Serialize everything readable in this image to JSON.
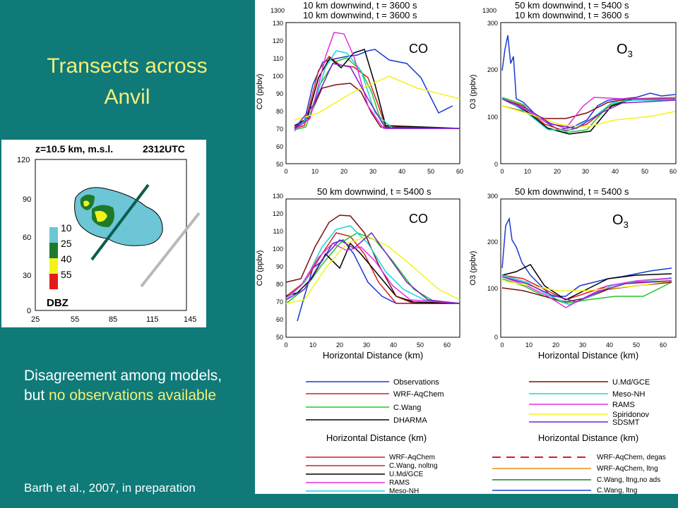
{
  "slide": {
    "title_line1": "Transects across",
    "title_line2": "Anvil",
    "desc_part1": "Disagreement among models, but ",
    "desc_highlight": "no observations available",
    "citation": "Barth et al., 2007, in preparation",
    "colors": {
      "background": "#0f7a78",
      "title": "#f4ee7a",
      "text": "#ffffff"
    }
  },
  "map": {
    "title": "z=10.5 km, m.s.l.",
    "time": "2312UTC",
    "y_ticks": [
      "120",
      "90",
      "60",
      "30",
      "0"
    ],
    "x_ticks": [
      "25",
      "55",
      "85",
      "115",
      "145"
    ],
    "legend": [
      "10",
      "25",
      "40",
      "55"
    ],
    "legend_unit": "DBZ"
  },
  "panels": {
    "p1": {
      "title_a": "10 km downwind, t = 3600 s",
      "title_b": "10 km downwind, t = 3600 s",
      "label": "CO",
      "ylabel": "CO (ppbv)",
      "y_ticks": [
        "130",
        "120",
        "110",
        "100",
        "90",
        "80",
        "70",
        "60",
        "50"
      ],
      "x_ticks": [
        "0",
        "10",
        "20",
        "30",
        "40",
        "50",
        "60"
      ],
      "top_tick": "1300"
    },
    "p2": {
      "title_a": "50 km downwind, t = 5400 s",
      "title_b": "10 km downwind, t = 3600 s",
      "label": "O",
      "label_sub": "3",
      "ylabel": "O3 (ppbv)",
      "y_ticks": [
        "300",
        "200",
        "100",
        "0"
      ],
      "x_ticks": [
        "0",
        "10",
        "20",
        "30",
        "40",
        "50",
        "60"
      ],
      "top_tick": "1300"
    },
    "p3": {
      "title": "50 km downwind, t = 5400 s",
      "label": "CO",
      "ylabel": "CO (ppbv)",
      "y_ticks": [
        "130",
        "120",
        "110",
        "100",
        "90",
        "80",
        "70",
        "60",
        "50"
      ],
      "x_ticks": [
        "0",
        "10",
        "20",
        "30",
        "40",
        "50",
        "60"
      ],
      "xlabel": "Horizontal Distance (km)"
    },
    "p4": {
      "title": "50 km downwind, t = 5400 s",
      "label": "O",
      "label_sub": "3",
      "ylabel": "O3 (ppbv)",
      "y_ticks": [
        "300",
        "200",
        "100",
        "0"
      ],
      "x_ticks": [
        "0",
        "10",
        "20",
        "30",
        "40",
        "50",
        "60"
      ],
      "xlabel": "Horizontal Distance (km)"
    }
  },
  "legend_left": [
    "Observations",
    "WRF-AqChem",
    "C.Wang",
    "DHARMA"
  ],
  "legend_right": [
    "U.Md/GCE",
    "Meso-NH",
    "RAMS",
    "Spiridonov",
    "SDSMT"
  ],
  "lower_xlabels": [
    "Horizontal Distance (km)",
    "Horizontal Distance (km)"
  ],
  "legend_bottom_left": [
    "WRF-AqChem",
    "C.Wang, noltng",
    "U.Md/GCE",
    "RAMS",
    "Meso-NH"
  ],
  "legend_bottom_right": [
    "WRF-AqChem, degas",
    "WRF-AqChem, ltng",
    "C.Wang, ltng,no ads",
    "C.Wang, ltng"
  ],
  "series_colors": {
    "observations": "#1a3bd1",
    "wrf": "#d62020",
    "cwang": "#22c52b",
    "dharma": "#000000",
    "umd": "#7a0f0f",
    "mesonh": "#18d6d6",
    "rams": "#e62ee0",
    "spiridonov": "#f3f31a",
    "sdsmt": "#7a22c9",
    "orange": "#f08a1c",
    "green_dk": "#1e7d1e"
  }
}
